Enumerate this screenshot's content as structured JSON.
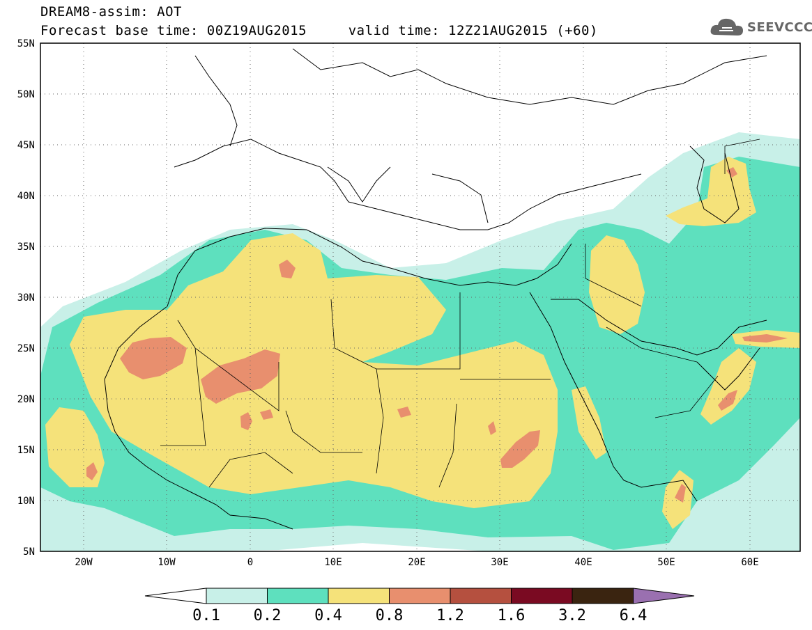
{
  "title": {
    "line1": "DREAM8-assim: AOT",
    "line2": "Forecast base time: 00Z19AUG2015     valid time: 12Z21AUG2015 (+60)"
  },
  "logo": {
    "text": "SEEVCCC",
    "icon": "cloud-icon"
  },
  "axes": {
    "lat_labels": [
      "55N",
      "50N",
      "45N",
      "40N",
      "35N",
      "30N",
      "25N",
      "20N",
      "15N",
      "10N",
      "5N"
    ],
    "lon_labels": [
      "20W",
      "10W",
      "0",
      "10E",
      "20E",
      "30E",
      "40E",
      "50E",
      "60E"
    ]
  },
  "colorbar": {
    "labels": [
      "0.1",
      "0.2",
      "0.4",
      "0.8",
      "1.2",
      "1.6",
      "3.2",
      "6.4"
    ],
    "colors": [
      "#c8f0e8",
      "#5ee0be",
      "#f5e27a",
      "#e88f6e",
      "#b5503f",
      "#7a0a22",
      "#3a2410",
      "#9a70b0"
    ]
  },
  "palette": {
    "bg": "#ffffff",
    "border": "#000000"
  }
}
